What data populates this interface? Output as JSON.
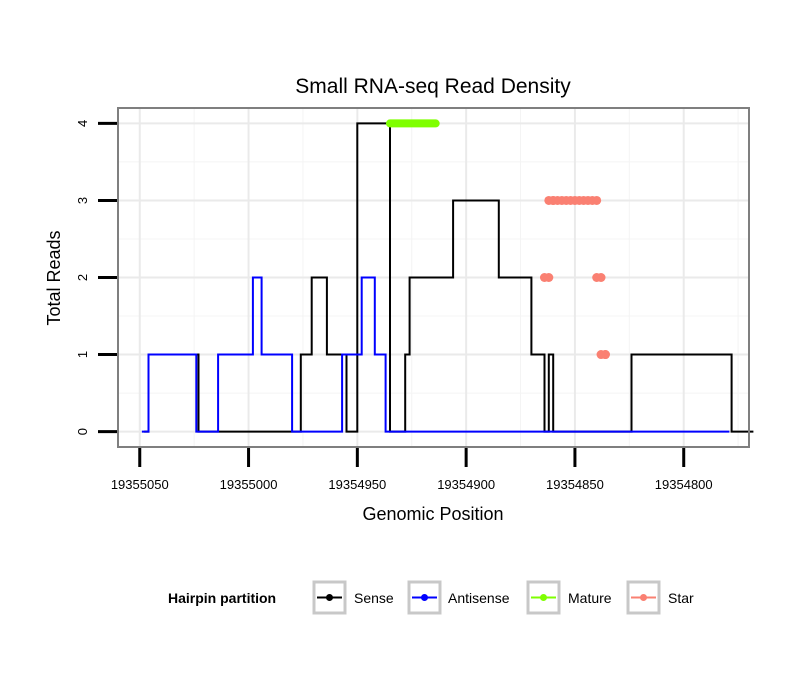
{
  "chart_data": {
    "type": "line",
    "title": "Small RNA-seq Read Density",
    "xlabel": "Genomic Position",
    "ylabel": "Total Reads",
    "xlim": [
      19355060,
      19354770
    ],
    "ylim": [
      -0.2,
      4.2
    ],
    "x_reversed": true,
    "grid": true,
    "x_ticks": [
      19355050,
      19355000,
      19354950,
      19354900,
      19354850,
      19354800
    ],
    "x_tick_labels": [
      "19355050",
      "19355000",
      "19354950",
      "19354900",
      "19354850",
      "19354800"
    ],
    "y_ticks": [
      0,
      1,
      2,
      3,
      4
    ],
    "y_tick_labels": [
      "0",
      "1",
      "2",
      "3",
      "4"
    ],
    "legend": {
      "title": "Hairpin partition",
      "position": "bottom",
      "entries": [
        {
          "label": "Sense",
          "color": "#000000"
        },
        {
          "label": "Antisense",
          "color": "#0000ff"
        },
        {
          "label": "Mature",
          "color": "#7fff00"
        },
        {
          "label": "Star",
          "color": "#fa8072"
        }
      ]
    },
    "series": [
      {
        "name": "Sense",
        "color": "#000000",
        "kind": "line",
        "x": [
          19355048,
          19355046,
          19355046,
          19355023,
          19355023,
          19354976,
          19354976,
          19354971,
          19354971,
          19354964,
          19354964,
          19354955,
          19354955,
          19354950,
          19354950,
          19354935,
          19354935,
          19354928,
          19354928,
          19354926,
          19354926,
          19354906,
          19354906,
          19354885,
          19354885,
          19354870,
          19354870,
          19354864,
          19354864,
          19354862,
          19354862,
          19354860,
          19354860,
          19354842,
          19354842,
          19354838,
          19354838,
          19354835,
          19354835,
          19354824,
          19354824,
          19354778,
          19354778,
          19354768
        ],
        "y": [
          0,
          0,
          1,
          1,
          0,
          0,
          1,
          1,
          2,
          2,
          1,
          1,
          0,
          0,
          4,
          4,
          0,
          0,
          1,
          1,
          2,
          2,
          3,
          3,
          2,
          2,
          1,
          1,
          0,
          0,
          1,
          1,
          0,
          0,
          0,
          0,
          0,
          0,
          0,
          0,
          1,
          1,
          0,
          0
        ]
      },
      {
        "name": "Antisense",
        "color": "#0000ff",
        "kind": "line",
        "x": [
          19355049,
          19355046,
          19355046,
          19355024,
          19355024,
          19355014,
          19355014,
          19354998,
          19354998,
          19354994,
          19354994,
          19354980,
          19354980,
          19354957,
          19354957,
          19354948,
          19354948,
          19354942,
          19354942,
          19354937,
          19354937,
          19354925,
          19354925,
          19354905,
          19354905,
          19354837,
          19354837,
          19354796,
          19354796,
          19354779
        ],
        "y": [
          0,
          0,
          1,
          1,
          0,
          0,
          1,
          1,
          2,
          2,
          1,
          1,
          0,
          0,
          1,
          1,
          2,
          2,
          1,
          1,
          0,
          0,
          0,
          0,
          0,
          0,
          0,
          0,
          0,
          0
        ]
      },
      {
        "name": "Mature",
        "color": "#7fff00",
        "kind": "segment",
        "x": [
          19354935,
          19354914
        ],
        "y": [
          4,
          4
        ]
      },
      {
        "name": "Star",
        "color": "#fa8072",
        "kind": "points",
        "x": [
          19354864,
          19354862,
          19354862,
          19354860,
          19354860,
          19354858,
          19354856,
          19354854,
          19354852,
          19354850,
          19354848,
          19354846,
          19354844,
          19354842,
          19354840,
          19354840,
          19354838,
          19354838,
          19354836,
          19354836
        ],
        "y": [
          2,
          2,
          3,
          3,
          3,
          3,
          3,
          3,
          3,
          3,
          3,
          3,
          3,
          3,
          3,
          2,
          2,
          1,
          1,
          1
        ]
      }
    ]
  }
}
